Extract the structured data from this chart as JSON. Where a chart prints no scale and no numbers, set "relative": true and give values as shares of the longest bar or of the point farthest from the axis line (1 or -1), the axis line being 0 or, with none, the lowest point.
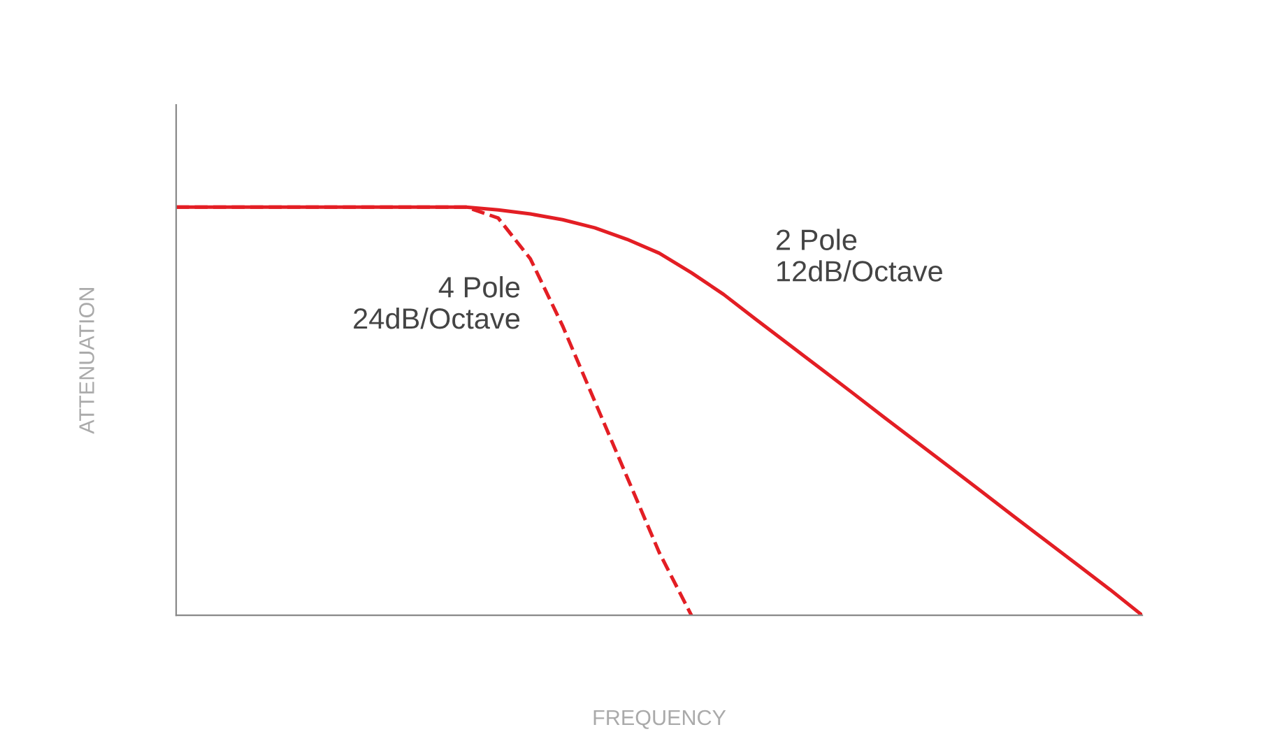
{
  "chart_data": {
    "type": "line",
    "relative": true,
    "xlabel": "FREQUENCY",
    "ylabel": "ATTENUATION",
    "grid": false,
    "legend": false,
    "marker": "none",
    "categories": [
      null,
      null,
      null,
      null,
      null,
      null,
      null,
      null,
      null,
      null,
      null,
      null,
      null,
      null,
      null,
      null,
      null,
      null,
      null,
      null,
      null,
      null,
      null,
      null,
      null,
      null,
      null,
      null,
      null,
      null,
      null
    ],
    "series": [
      {
        "name": "4 Pole\n24dB/Octave",
        "color": "#e31e24",
        "line_style": "dashed",
        "values": [
          1,
          1,
          1,
          1,
          1,
          1,
          1,
          1,
          1,
          1,
          0.973,
          0.873,
          0.709,
          0.524,
          0.339,
          0.154,
          0,
          null,
          null,
          null,
          null,
          null,
          null,
          null,
          null,
          null,
          null,
          null,
          null,
          null,
          null
        ]
      },
      {
        "name": "2 Pole\n12dB/Octave",
        "color": "#e31e24",
        "line_style": "solid",
        "values": [
          1,
          1,
          1,
          1,
          1,
          1,
          1,
          1,
          1,
          1,
          0.993,
          0.983,
          0.969,
          0.949,
          0.921,
          0.887,
          0.839,
          0.786,
          0.725,
          0.665,
          0.605,
          0.545,
          0.484,
          0.424,
          0.364,
          0.304,
          0.243,
          0.183,
          0.123,
          0.063,
          0
        ]
      }
    ]
  }
}
